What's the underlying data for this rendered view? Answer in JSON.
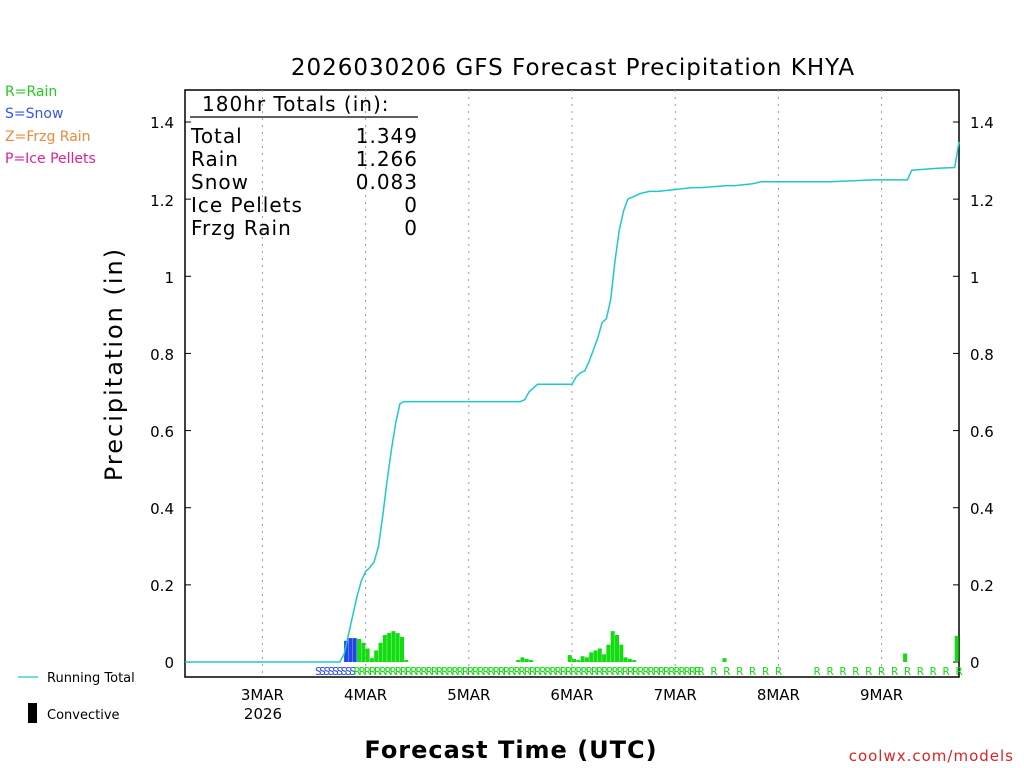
{
  "chart_data": {
    "type": "bar+line",
    "title": "2026030206 GFS Forecast Precipitation KHYA",
    "xlabel": "Forecast Time (UTC)",
    "ylabel": "Precipitation (in)",
    "ylim": [
      0,
      1.5
    ],
    "yticks": [
      "0",
      "0.2",
      "0.4",
      "0.6",
      "0.8",
      "1",
      "1.2",
      "1.4"
    ],
    "ytick_values": [
      0,
      0.2,
      0.4,
      0.6,
      0.8,
      1.0,
      1.2,
      1.4
    ],
    "x_range_hours": [
      0,
      180
    ],
    "x_day_lines_hours": [
      18,
      42,
      66,
      90,
      114,
      138,
      162
    ],
    "x_tick_labels": [
      "3MAR",
      "4MAR",
      "5MAR",
      "6MAR",
      "7MAR",
      "8MAR",
      "9MAR"
    ],
    "x_year_label": "2026",
    "legend_types": [
      {
        "label": "R=Rain",
        "color": "#22cc22"
      },
      {
        "label": "S=Snow",
        "color": "#3355ee"
      },
      {
        "label": "Z=Frzg Rain",
        "color": "#f0883a"
      },
      {
        "label": "P=Ice Pellets",
        "color": "#e02090"
      }
    ],
    "legend_series": [
      {
        "label": "Running Total",
        "color": "#20c8c8"
      },
      {
        "label": "Convective",
        "color": "#000000"
      }
    ],
    "totals": {
      "header": "180hr Totals (in):",
      "rows": [
        {
          "label": "Total",
          "value": "1.349"
        },
        {
          "label": "Rain",
          "value": "1.266"
        },
        {
          "label": "Snow",
          "value": "0.083"
        },
        {
          "label": "Ice Pellets",
          "value": "0"
        },
        {
          "label": "Frzg Rain",
          "value": "0"
        }
      ]
    },
    "running_total": {
      "hours": [
        0,
        36,
        37,
        38,
        39,
        40,
        41,
        42,
        43,
        44,
        45,
        46,
        47,
        48,
        49,
        50,
        51,
        52,
        53,
        54,
        78,
        79,
        80,
        81,
        82,
        84,
        90,
        91,
        92,
        93,
        94,
        95,
        96,
        97,
        98,
        99,
        100,
        101,
        102,
        103,
        104,
        105,
        106,
        108,
        110,
        114,
        118,
        120,
        126,
        128,
        132,
        134,
        144,
        150,
        160,
        168,
        169,
        175,
        179,
        180
      ],
      "values": [
        0,
        0,
        0.02,
        0.07,
        0.12,
        0.17,
        0.21,
        0.235,
        0.245,
        0.26,
        0.3,
        0.38,
        0.47,
        0.55,
        0.62,
        0.67,
        0.675,
        0.675,
        0.675,
        0.675,
        0.675,
        0.68,
        0.7,
        0.71,
        0.72,
        0.72,
        0.72,
        0.74,
        0.75,
        0.755,
        0.78,
        0.81,
        0.84,
        0.88,
        0.89,
        0.94,
        1.04,
        1.12,
        1.17,
        1.2,
        1.205,
        1.21,
        1.215,
        1.22,
        1.22,
        1.225,
        1.23,
        1.23,
        1.235,
        1.235,
        1.24,
        1.245,
        1.245,
        1.245,
        1.25,
        1.25,
        1.275,
        1.28,
        1.282,
        1.349
      ]
    },
    "bars": [
      {
        "h": 38,
        "v": 0.055,
        "type": "S"
      },
      {
        "h": 39,
        "v": 0.062,
        "type": "S"
      },
      {
        "h": 40,
        "v": 0.062,
        "type": "S"
      },
      {
        "h": 41,
        "v": 0.06,
        "type": "R"
      },
      {
        "h": 42,
        "v": 0.05,
        "type": "R"
      },
      {
        "h": 43,
        "v": 0.035,
        "type": "R"
      },
      {
        "h": 44,
        "v": 0.01,
        "type": "R"
      },
      {
        "h": 45,
        "v": 0.03,
        "type": "R"
      },
      {
        "h": 46,
        "v": 0.05,
        "type": "R"
      },
      {
        "h": 47,
        "v": 0.07,
        "type": "R"
      },
      {
        "h": 48,
        "v": 0.075,
        "type": "R"
      },
      {
        "h": 49,
        "v": 0.08,
        "type": "R"
      },
      {
        "h": 50,
        "v": 0.075,
        "type": "R"
      },
      {
        "h": 51,
        "v": 0.065,
        "type": "R"
      },
      {
        "h": 52,
        "v": 0.005,
        "type": "R"
      },
      {
        "h": 78,
        "v": 0.005,
        "type": "R"
      },
      {
        "h": 79,
        "v": 0.012,
        "type": "R"
      },
      {
        "h": 80,
        "v": 0.008,
        "type": "R"
      },
      {
        "h": 81,
        "v": 0.005,
        "type": "R"
      },
      {
        "h": 90,
        "v": 0.018,
        "type": "R"
      },
      {
        "h": 91,
        "v": 0.008,
        "type": "R"
      },
      {
        "h": 92,
        "v": 0.005,
        "type": "R"
      },
      {
        "h": 93,
        "v": 0.015,
        "type": "R"
      },
      {
        "h": 94,
        "v": 0.012,
        "type": "R"
      },
      {
        "h": 95,
        "v": 0.025,
        "type": "R"
      },
      {
        "h": 96,
        "v": 0.03,
        "type": "R"
      },
      {
        "h": 97,
        "v": 0.035,
        "type": "R"
      },
      {
        "h": 98,
        "v": 0.02,
        "type": "R"
      },
      {
        "h": 99,
        "v": 0.045,
        "type": "R"
      },
      {
        "h": 100,
        "v": 0.08,
        "type": "R"
      },
      {
        "h": 101,
        "v": 0.07,
        "type": "R"
      },
      {
        "h": 102,
        "v": 0.045,
        "type": "R"
      },
      {
        "h": 103,
        "v": 0.012,
        "type": "R"
      },
      {
        "h": 104,
        "v": 0.008,
        "type": "R"
      },
      {
        "h": 105,
        "v": 0.005,
        "type": "R"
      },
      {
        "h": 126,
        "v": 0.01,
        "type": "R"
      },
      {
        "h": 168,
        "v": 0.022,
        "type": "R"
      },
      {
        "h": 180,
        "v": 0.068,
        "type": "R"
      }
    ],
    "ptype_strip": {
      "snow_hours": [
        31,
        40
      ],
      "rain_dense_hours": [
        40,
        120
      ],
      "rain_sparse_hours": [
        120,
        180
      ]
    },
    "colors": {
      "rain": "#11dd11",
      "snow": "#2244ee",
      "running_total": "#20c8c8",
      "grid": "#999999",
      "credit": "#dd2222"
    }
  },
  "credit": "coolwx.com/models"
}
